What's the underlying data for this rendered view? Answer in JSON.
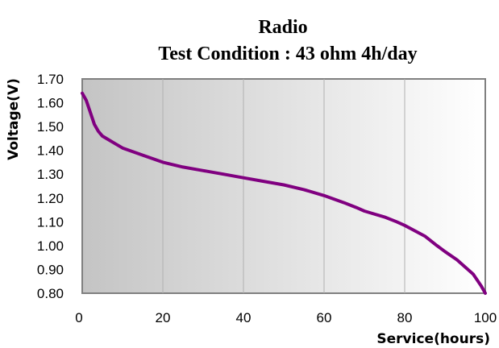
{
  "chart_data": {
    "type": "line",
    "title": "Radio",
    "subtitle": "Test Condition : 43 ohm 4h/day",
    "xlabel": "Service(hours)",
    "ylabel": "Voltage(V)",
    "xlim": [
      0,
      100
    ],
    "ylim": [
      0.8,
      1.7
    ],
    "x_ticks": [
      "0",
      "20",
      "40",
      "60",
      "80",
      "100"
    ],
    "y_ticks": [
      "1.70",
      "1.60",
      "1.50",
      "1.40",
      "1.30",
      "1.20",
      "1.10",
      "1.00",
      "0.90",
      "0.80"
    ],
    "grid": "vertical",
    "background": "gradient gray to white",
    "series": [
      {
        "color": "#800080",
        "x": [
          0,
          1,
          2,
          3,
          4,
          5,
          6,
          8,
          10,
          15,
          20,
          25,
          30,
          35,
          40,
          45,
          50,
          55,
          60,
          65,
          68,
          70,
          72,
          75,
          78,
          80,
          85,
          88,
          90,
          93,
          95,
          97,
          98,
          99,
          100
        ],
        "y": [
          1.64,
          1.61,
          1.56,
          1.51,
          1.48,
          1.46,
          1.45,
          1.43,
          1.41,
          1.38,
          1.35,
          1.33,
          1.315,
          1.3,
          1.285,
          1.27,
          1.255,
          1.235,
          1.21,
          1.18,
          1.16,
          1.145,
          1.135,
          1.12,
          1.1,
          1.085,
          1.04,
          1.0,
          0.975,
          0.94,
          0.91,
          0.88,
          0.855,
          0.83,
          0.8
        ]
      }
    ]
  }
}
